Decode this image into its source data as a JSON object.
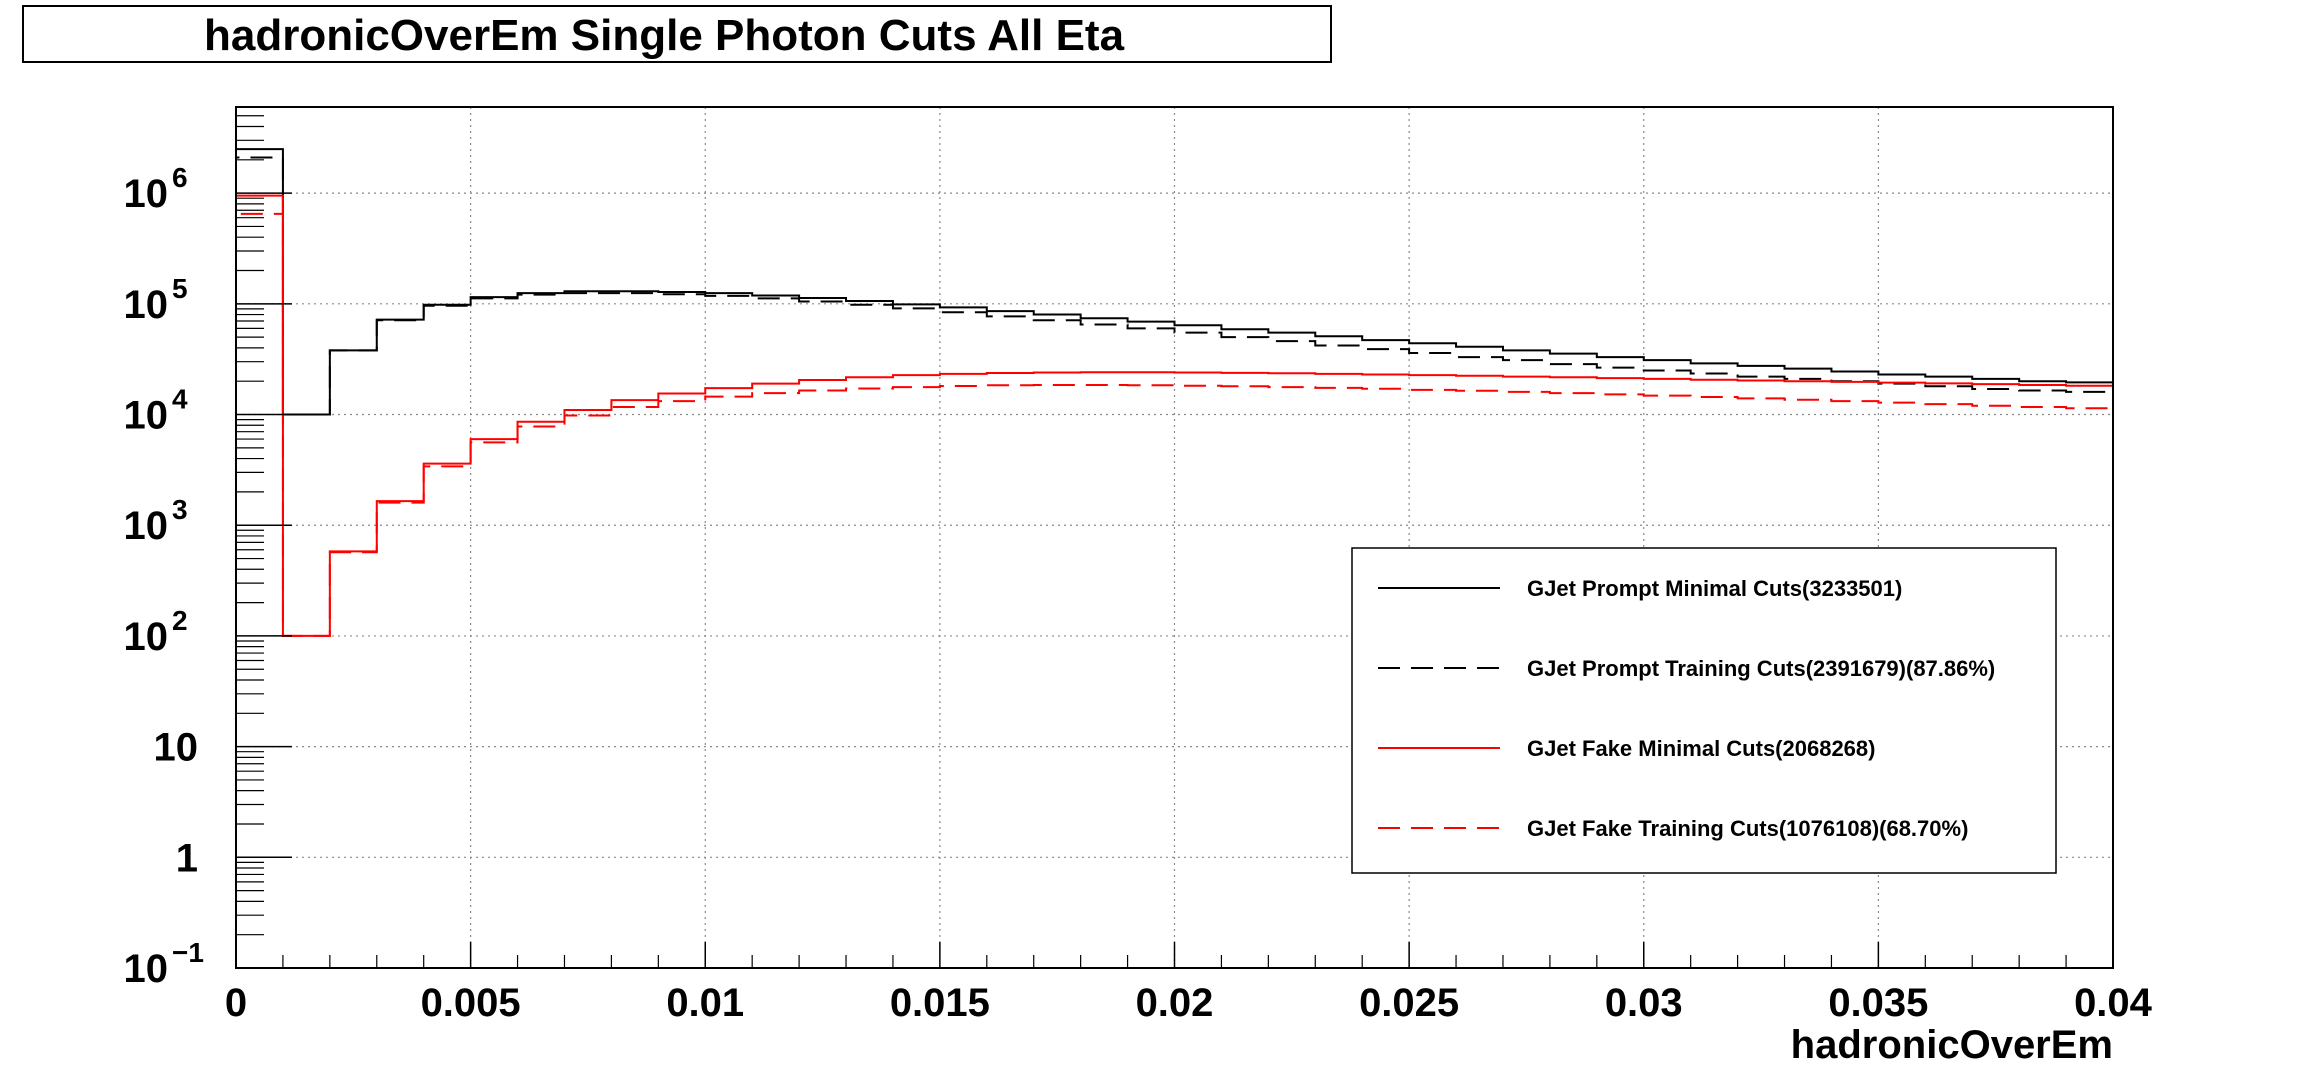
{
  "chart_data": {
    "type": "line",
    "title": "hadronicOverEm Single Photon Cuts All Eta",
    "xlabel": "hadronicOverEm",
    "ylabel": "",
    "xlim": [
      0,
      0.04
    ],
    "ylim": [
      0.1,
      6000000
    ],
    "log_y": true,
    "grid": true,
    "legend_position": "bottom-right",
    "x_ticks": [
      "0",
      "0.005",
      "0.01",
      "0.015",
      "0.02",
      "0.025",
      "0.03",
      "0.035",
      "0.04"
    ],
    "x_tick_values": [
      0,
      0.005,
      0.01,
      0.015,
      0.02,
      0.025,
      0.03,
      0.035,
      0.04
    ],
    "y_ticks": [
      {
        "value": 1000000,
        "base": "10",
        "exp": "6"
      },
      {
        "value": 100000,
        "base": "10",
        "exp": "5"
      },
      {
        "value": 10000,
        "base": "10",
        "exp": "4"
      },
      {
        "value": 1000,
        "base": "10",
        "exp": "3"
      },
      {
        "value": 100,
        "base": "10",
        "exp": "2"
      },
      {
        "value": 10,
        "base": "10",
        "exp": ""
      },
      {
        "value": 1,
        "base": "1",
        "exp": ""
      },
      {
        "value": 0.1,
        "base": "10",
        "exp": "−1"
      }
    ],
    "bin_width": 0.001,
    "x": [
      0.0005,
      0.0015,
      0.0025,
      0.0035,
      0.0045,
      0.0055,
      0.0065,
      0.0075,
      0.0085,
      0.0095,
      0.0105,
      0.0115,
      0.0125,
      0.0135,
      0.0145,
      0.0155,
      0.0165,
      0.0175,
      0.0185,
      0.0195,
      0.0205,
      0.0215,
      0.0225,
      0.0235,
      0.0245,
      0.0255,
      0.0265,
      0.0275,
      0.0285,
      0.0295,
      0.0305,
      0.0315,
      0.0325,
      0.0335,
      0.0345,
      0.0355,
      0.0365,
      0.0375,
      0.0385,
      0.0395
    ],
    "series": [
      {
        "name": "GJet Prompt Minimal Cuts(3233501)",
        "color": "#000000",
        "dash": "solid",
        "values": [
          2500000,
          10000,
          38000,
          72000,
          98000,
          115000,
          125000,
          130000,
          130000,
          128000,
          125000,
          119000,
          113000,
          106000,
          99000,
          93000,
          86000,
          80000,
          74000,
          69000,
          64000,
          59000,
          55000,
          51000,
          47000,
          44000,
          41000,
          38000,
          35500,
          33000,
          31000,
          29000,
          27500,
          26000,
          24500,
          23000,
          22000,
          21000,
          20000,
          19500
        ]
      },
      {
        "name": "GJet Prompt Training Cuts(2391679)(87.86%)",
        "color": "#000000",
        "dash": "dashed",
        "values": [
          2100000,
          10000,
          38000,
          71000,
          96000,
          112000,
          121000,
          125000,
          125000,
          122000,
          118000,
          112000,
          105000,
          98000,
          91000,
          84000,
          77000,
          71000,
          65000,
          60000,
          55000,
          50000,
          46000,
          42000,
          39000,
          36000,
          33000,
          31000,
          28500,
          26500,
          25000,
          23500,
          22000,
          21000,
          20000,
          19000,
          18000,
          17000,
          16500,
          16000
        ]
      },
      {
        "name": "GJet Fake Minimal Cuts(2068268)",
        "color": "#ff0000",
        "dash": "solid",
        "values": [
          950000,
          100,
          580,
          1650,
          3600,
          6000,
          8600,
          11000,
          13500,
          15500,
          17300,
          19000,
          20500,
          21700,
          22700,
          23300,
          23700,
          24000,
          24100,
          24100,
          24000,
          23800,
          23600,
          23300,
          23000,
          22700,
          22400,
          22000,
          21700,
          21300,
          21000,
          20600,
          20300,
          20000,
          19700,
          19400,
          19100,
          18800,
          18500,
          18200
        ]
      },
      {
        "name": "GJet Fake Training Cuts(1076108)(68.70%)",
        "color": "#ff0000",
        "dash": "dashed",
        "values": [
          650000,
          100,
          570,
          1600,
          3400,
          5600,
          7800,
          9800,
          11700,
          13200,
          14500,
          15600,
          16500,
          17200,
          17700,
          18100,
          18400,
          18500,
          18500,
          18400,
          18200,
          18000,
          17700,
          17400,
          17100,
          16700,
          16400,
          16000,
          15600,
          15200,
          14800,
          14400,
          14000,
          13600,
          13200,
          12800,
          12400,
          12000,
          11700,
          11400
        ]
      }
    ]
  }
}
